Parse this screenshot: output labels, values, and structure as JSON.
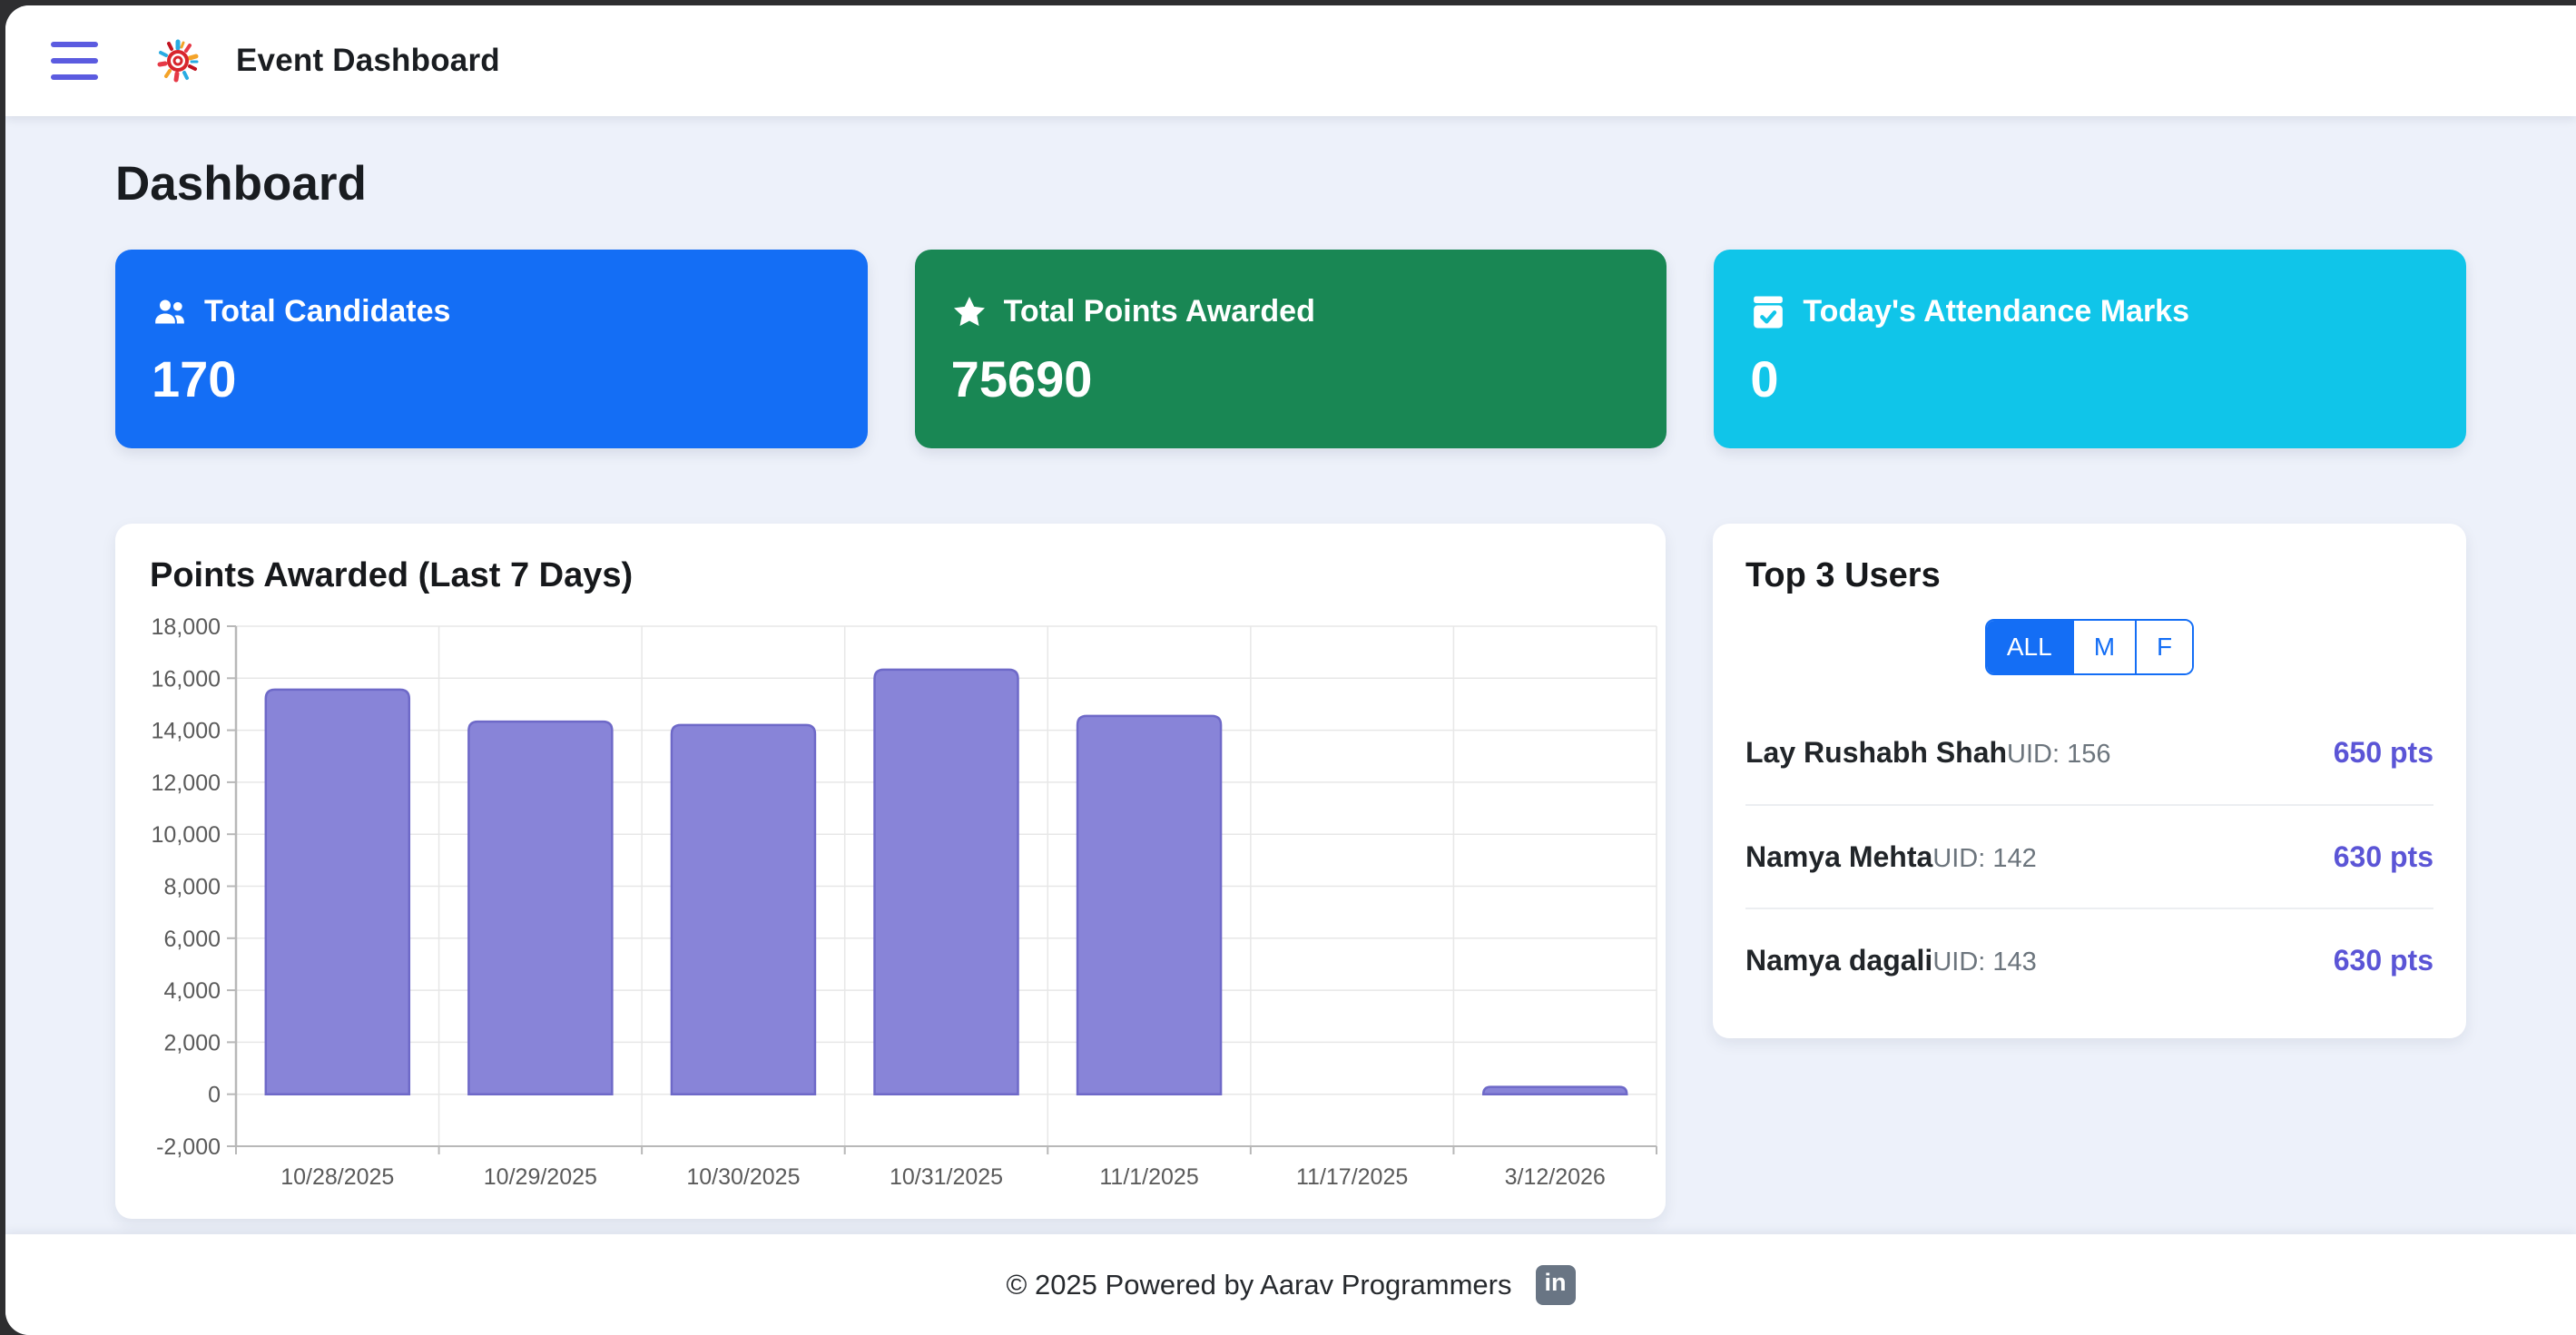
{
  "header": {
    "title": "Event Dashboard"
  },
  "page": {
    "heading": "Dashboard"
  },
  "stats": [
    {
      "label": "Total Candidates",
      "value": "170",
      "icon": "people-icon",
      "color": "#146ef5"
    },
    {
      "label": "Total Points Awarded",
      "value": "75690",
      "icon": "star-icon",
      "color": "#198754"
    },
    {
      "label": "Today's Attendance Marks",
      "value": "0",
      "icon": "calendar-check-icon",
      "color": "#10c5e9"
    }
  ],
  "chart_data": {
    "type": "bar",
    "title": "Points Awarded (Last 7 Days)",
    "categories": [
      "10/28/2025",
      "10/29/2025",
      "10/30/2025",
      "10/31/2025",
      "11/1/2025",
      "11/17/2025",
      "3/12/2026"
    ],
    "values": [
      15560,
      14330,
      14200,
      16330,
      14550,
      0,
      280
    ],
    "xlabel": "",
    "ylabel": "",
    "ylim": [
      -2000,
      18000
    ],
    "ytick_step": 2000,
    "grid": true,
    "legend": false,
    "bar_color": "#8884d8",
    "bar_border_color": "#6e69c8",
    "axis_color": "#b8b8b8",
    "grid_color": "#e7e7e7",
    "tick_text_color": "#5a5a5a"
  },
  "top_users": {
    "title": "Top 3 Users",
    "filters": [
      {
        "label": "ALL",
        "active": true
      },
      {
        "label": "M",
        "active": false
      },
      {
        "label": "F",
        "active": false
      }
    ],
    "users": [
      {
        "name": "Lay Rushabh Shah",
        "uid_label": "UID: 156",
        "points": "650 pts"
      },
      {
        "name": "Namya Mehta",
        "uid_label": "UID: 142",
        "points": "630 pts"
      },
      {
        "name": "Namya dagali",
        "uid_label": "UID: 143",
        "points": "630 pts"
      }
    ],
    "points_color": "#5b55d6",
    "accent_color": "#146ef5"
  },
  "footer": {
    "text": "© 2025 Powered by Aarav Programmers",
    "linkedin_text": "in"
  }
}
